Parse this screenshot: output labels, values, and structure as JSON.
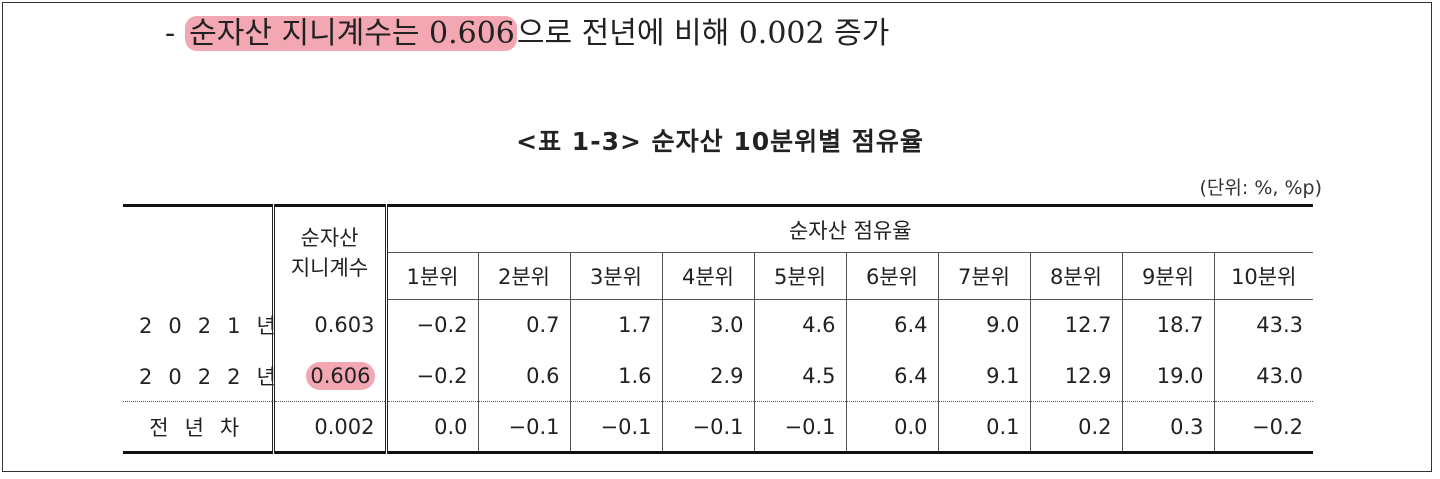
{
  "summary": {
    "dash": "-",
    "highlight": "순자산 지니계수는 0.606",
    "rest": "으로 전년에 비해 0.002 증가"
  },
  "table": {
    "title": "<표 1-3> 순자산 10분위별 점유율",
    "unit": "(단위: %, %p)",
    "gini_header_line1": "순자산",
    "gini_header_line2": "지니계수",
    "share_header": "순자산 점유율",
    "deciles": [
      "1분위",
      "2분위",
      "3분위",
      "4분위",
      "5분위",
      "6분위",
      "7분위",
      "8분위",
      "9분위",
      "10분위"
    ],
    "rows": [
      {
        "label": "2021년",
        "gini": "0.603",
        "values": [
          "−0.2",
          "0.7",
          "1.7",
          "3.0",
          "4.6",
          "6.4",
          "9.0",
          "12.7",
          "18.7",
          "43.3"
        ]
      },
      {
        "label": "2022년",
        "gini": "0.606",
        "values": [
          "−0.2",
          "0.6",
          "1.6",
          "2.9",
          "4.5",
          "6.4",
          "9.1",
          "12.9",
          "19.0",
          "43.0"
        ]
      },
      {
        "label": "전년차",
        "gini": "0.002",
        "values": [
          "0.0",
          "−0.1",
          "−0.1",
          "−0.1",
          "−0.1",
          "0.0",
          "0.1",
          "0.2",
          "0.3",
          "−0.2"
        ]
      }
    ]
  },
  "colors": {
    "highlight": "#f2a7b2"
  }
}
